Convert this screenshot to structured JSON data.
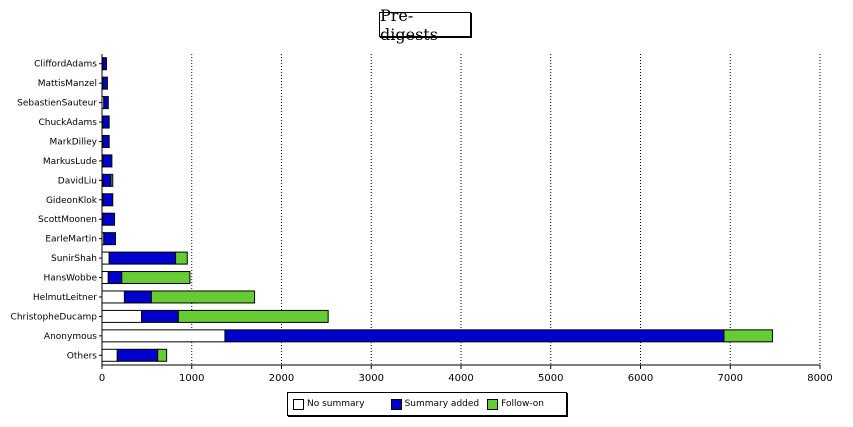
{
  "chart_data": {
    "type": "bar",
    "orientation": "horizontal",
    "stacked": true,
    "title": "Pre-digests",
    "xlabel": "",
    "ylabel": "",
    "xlim": [
      0,
      8000
    ],
    "xticks": [
      0,
      1000,
      2000,
      3000,
      4000,
      5000,
      6000,
      7000,
      8000
    ],
    "grid": "vertical-dotted",
    "legend_position": "bottom",
    "categories": [
      "CliffordAdams",
      "MattisManzel",
      "SebastienSauteur",
      "ChuckAdams",
      "MarkDilley",
      "MarkusLude",
      "DavidLiu",
      "GideonKlok",
      "ScottMoonen",
      "EarleMartin",
      "SunirShah",
      "HansWobbe",
      "HelmutLeitner",
      "ChristopheDucamp",
      "Anonymous",
      "Others"
    ],
    "series": [
      {
        "name": "No summary",
        "color": "#ffffff",
        "values": [
          10,
          10,
          20,
          10,
          10,
          10,
          10,
          10,
          10,
          20,
          80,
          70,
          250,
          440,
          1370,
          170
        ]
      },
      {
        "name": "Summary added",
        "color": "#0000cc",
        "values": [
          40,
          50,
          50,
          70,
          70,
          100,
          90,
          110,
          130,
          130,
          740,
          150,
          300,
          410,
          5560,
          450
        ]
      },
      {
        "name": "Follow-on",
        "color": "#66cc33",
        "values": [
          0,
          0,
          0,
          0,
          0,
          0,
          20,
          0,
          0,
          0,
          130,
          760,
          1150,
          1670,
          540,
          100
        ]
      }
    ]
  }
}
